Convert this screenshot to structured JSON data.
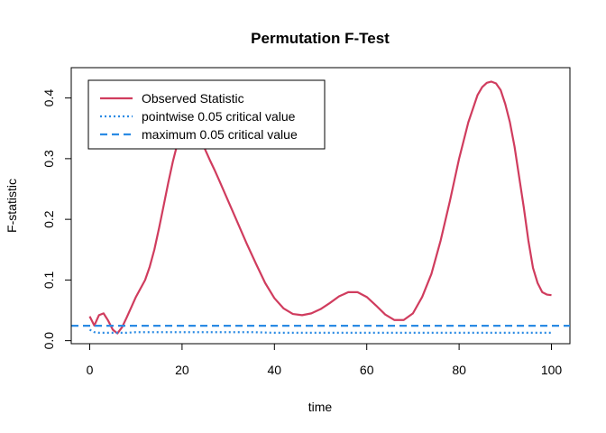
{
  "chart_data": {
    "type": "line",
    "title": "Permutation F-Test",
    "xlabel": "time",
    "ylabel": "F-statistic",
    "xlim": [
      -4,
      104
    ],
    "ylim": [
      -0.005,
      0.45
    ],
    "xticks": [
      0,
      20,
      40,
      60,
      80,
      100
    ],
    "yticks": [
      0.0,
      0.1,
      0.2,
      0.3,
      0.4
    ],
    "xtick_labels": [
      "0",
      "20",
      "40",
      "60",
      "80",
      "100"
    ],
    "ytick_labels": [
      "0.0",
      "0.1",
      "0.2",
      "0.3",
      "0.4"
    ],
    "grid": false,
    "legend_position": "top-left",
    "series": [
      {
        "name": "Observed Statistic",
        "color": "#d03c5e",
        "style": "solid",
        "x": [
          0,
          1,
          2,
          3,
          4,
          5,
          6,
          7,
          8,
          9,
          10,
          12,
          13,
          14,
          15,
          16,
          17,
          18,
          19,
          20,
          21,
          22,
          23,
          24,
          25,
          26,
          27,
          28,
          30,
          32,
          34,
          36,
          38,
          40,
          42,
          44,
          46,
          48,
          50,
          52,
          54,
          56,
          58,
          60,
          62,
          64,
          66,
          68,
          70,
          72,
          74,
          76,
          78,
          80,
          82,
          84,
          85,
          86,
          87,
          88,
          89,
          90,
          91,
          92,
          93,
          94,
          95,
          96,
          97,
          98,
          99,
          100
        ],
        "y": [
          0.04,
          0.025,
          0.042,
          0.045,
          0.033,
          0.018,
          0.012,
          0.022,
          0.038,
          0.055,
          0.072,
          0.1,
          0.122,
          0.15,
          0.185,
          0.222,
          0.26,
          0.295,
          0.325,
          0.342,
          0.35,
          0.352,
          0.345,
          0.33,
          0.315,
          0.298,
          0.282,
          0.265,
          0.23,
          0.195,
          0.16,
          0.127,
          0.095,
          0.07,
          0.053,
          0.044,
          0.042,
          0.045,
          0.052,
          0.062,
          0.073,
          0.08,
          0.08,
          0.072,
          0.058,
          0.043,
          0.034,
          0.034,
          0.045,
          0.072,
          0.11,
          0.165,
          0.23,
          0.3,
          0.36,
          0.405,
          0.418,
          0.425,
          0.427,
          0.424,
          0.413,
          0.39,
          0.36,
          0.32,
          0.27,
          0.22,
          0.165,
          0.12,
          0.095,
          0.08,
          0.076,
          0.075
        ]
      },
      {
        "name": "pointwise 0.05 critical value",
        "color": "#2b8be4",
        "style": "dotted",
        "x": [
          0,
          1,
          2,
          4,
          6,
          8,
          10,
          15,
          20,
          25,
          30,
          35,
          40,
          45,
          50,
          55,
          60,
          65,
          70,
          75,
          80,
          85,
          90,
          95,
          100
        ],
        "y": [
          0.018,
          0.014,
          0.013,
          0.013,
          0.013,
          0.013,
          0.014,
          0.014,
          0.014,
          0.014,
          0.014,
          0.014,
          0.013,
          0.013,
          0.013,
          0.013,
          0.013,
          0.013,
          0.013,
          0.013,
          0.013,
          0.013,
          0.013,
          0.013,
          0.013
        ]
      },
      {
        "name": "maximum 0.05 critical value",
        "color": "#2b8be4",
        "style": "dashed",
        "hline": 0.0245
      }
    ]
  }
}
